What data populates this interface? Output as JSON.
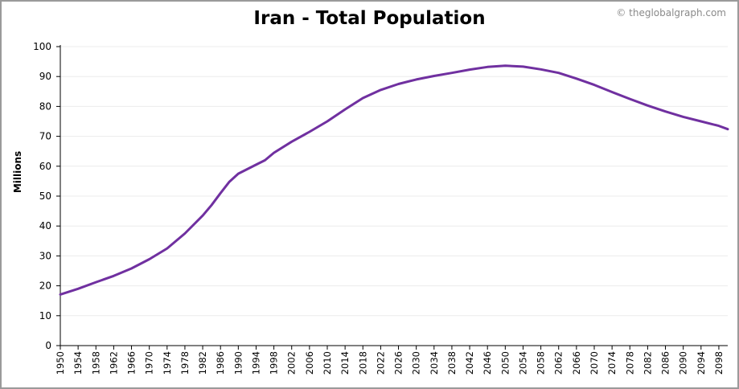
{
  "credit": "© theglobalgraph.com",
  "chart_data": {
    "type": "line",
    "title": "Iran - Total Population",
    "xlabel": "",
    "ylabel": "Millions",
    "ylim": [
      0,
      100
    ],
    "xlim": [
      1950,
      2100
    ],
    "y_ticks": [
      0,
      10,
      20,
      30,
      40,
      50,
      60,
      70,
      80,
      90,
      100
    ],
    "x_ticks": [
      1950,
      1954,
      1958,
      1962,
      1966,
      1970,
      1974,
      1978,
      1982,
      1986,
      1990,
      1994,
      1998,
      2002,
      2006,
      2010,
      2014,
      2018,
      2022,
      2026,
      2030,
      2034,
      2038,
      2042,
      2046,
      2050,
      2054,
      2058,
      2062,
      2066,
      2070,
      2074,
      2078,
      2082,
      2086,
      2090,
      2094,
      2098
    ],
    "grid": true,
    "line_color": "#7030a0",
    "series": [
      {
        "x": [
          1950,
          1954,
          1958,
          1962,
          1966,
          1970,
          1974,
          1978,
          1982,
          1984,
          1986,
          1988,
          1990,
          1992,
          1994,
          1996,
          1998,
          2002,
          2006,
          2010,
          2014,
          2018,
          2022,
          2026,
          2030,
          2034,
          2038,
          2042,
          2046,
          2050,
          2054,
          2058,
          2062,
          2066,
          2070,
          2074,
          2078,
          2082,
          2086,
          2090,
          2094,
          2098,
          2100
        ],
        "values": [
          17.1,
          19.0,
          21.2,
          23.3,
          25.8,
          28.9,
          32.5,
          37.5,
          43.5,
          47.0,
          51.0,
          54.8,
          57.5,
          59.0,
          60.5,
          62.0,
          64.5,
          68.2,
          71.5,
          75.0,
          79.0,
          82.8,
          85.5,
          87.5,
          89.0,
          90.2,
          91.2,
          92.3,
          93.2,
          93.6,
          93.3,
          92.4,
          91.2,
          89.3,
          87.2,
          84.8,
          82.5,
          80.3,
          78.3,
          76.5,
          75.0,
          73.5,
          72.4
        ]
      }
    ]
  }
}
